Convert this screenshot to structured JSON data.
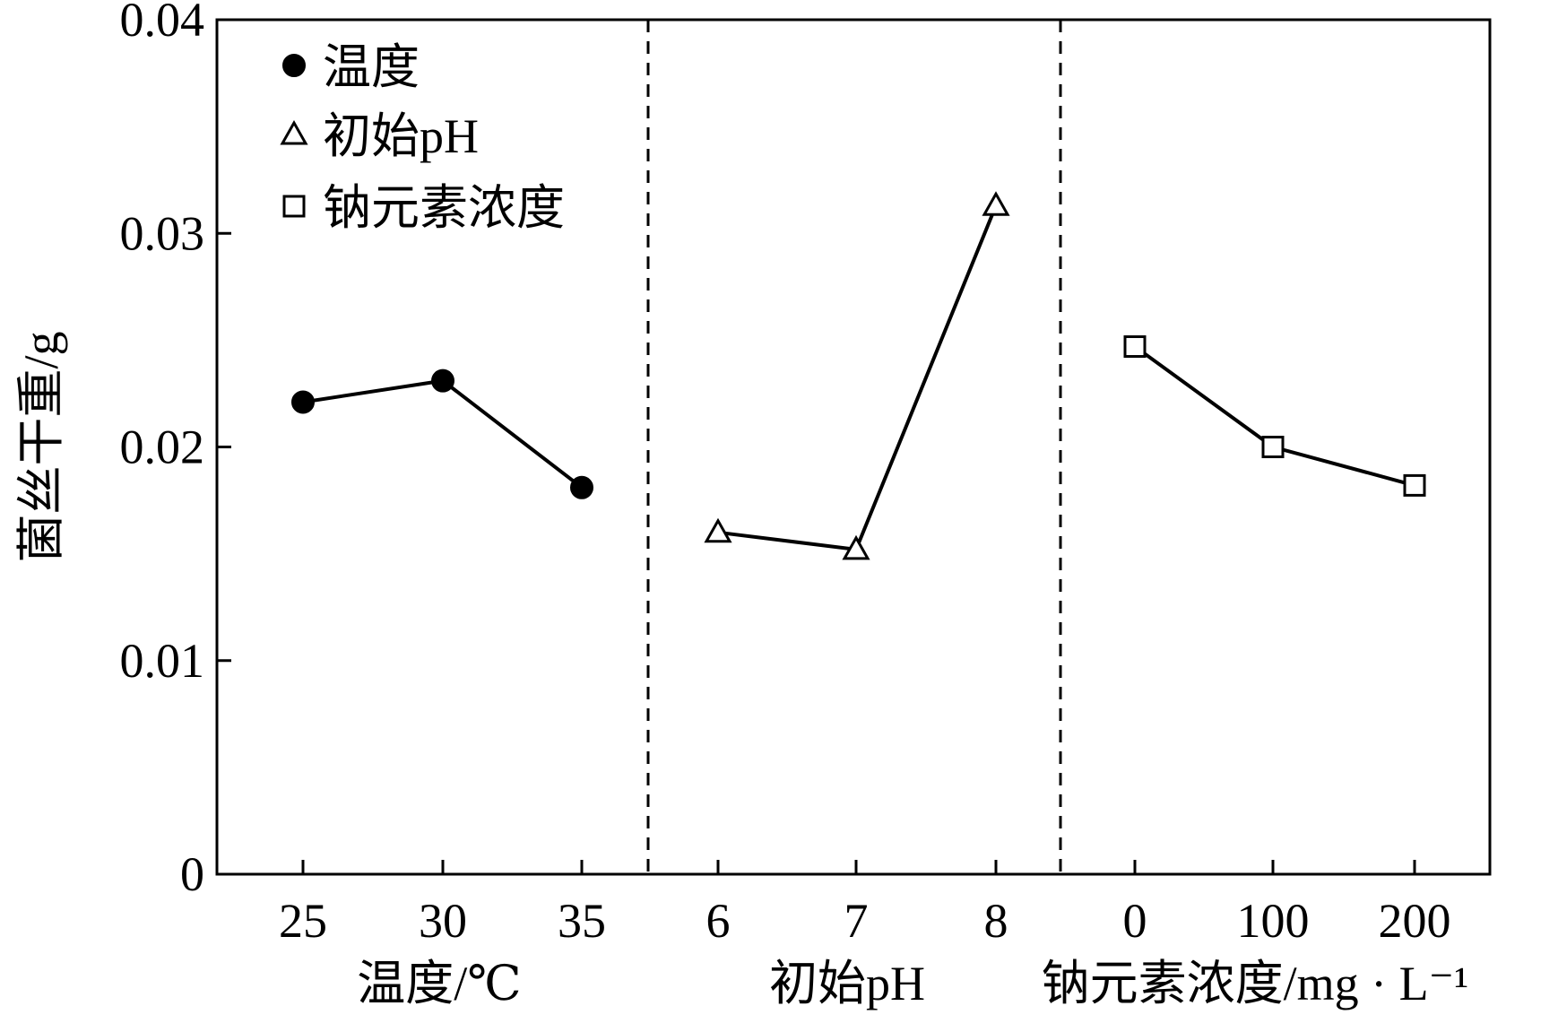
{
  "chart_data": {
    "type": "line",
    "ylabel": "菌丝干重/g",
    "ylim": [
      0,
      0.04
    ],
    "y_ticks": [
      {
        "value": 0,
        "label": "0"
      },
      {
        "value": 0.01,
        "label": "0.01"
      },
      {
        "value": 0.02,
        "label": "0.02"
      },
      {
        "value": 0.03,
        "label": "0.03"
      },
      {
        "value": 0.04,
        "label": "0.04"
      }
    ],
    "grid": false,
    "legend_position": "top-left",
    "panels": [
      {
        "xlabel": "温度/℃",
        "categories": [
          "25",
          "30",
          "35"
        ],
        "series": {
          "name": "温度",
          "marker": "filled-circle",
          "values": [
            0.0221,
            0.0231,
            0.0181
          ]
        }
      },
      {
        "xlabel": "初始pH",
        "categories": [
          "6",
          "7",
          "8"
        ],
        "series": {
          "name": "初始pH",
          "marker": "open-triangle",
          "values": [
            0.016,
            0.0152,
            0.0313
          ]
        }
      },
      {
        "xlabel": "钠元素浓度/mg · L⁻¹",
        "categories": [
          "0",
          "100",
          "200"
        ],
        "series": {
          "name": "钠元素浓度",
          "marker": "open-square",
          "values": [
            0.0247,
            0.02,
            0.0182
          ]
        }
      }
    ],
    "colors": {
      "line": "#000000",
      "marker_fill_open": "#ffffff",
      "marker_fill_solid": "#000000",
      "background": "#ffffff"
    }
  }
}
